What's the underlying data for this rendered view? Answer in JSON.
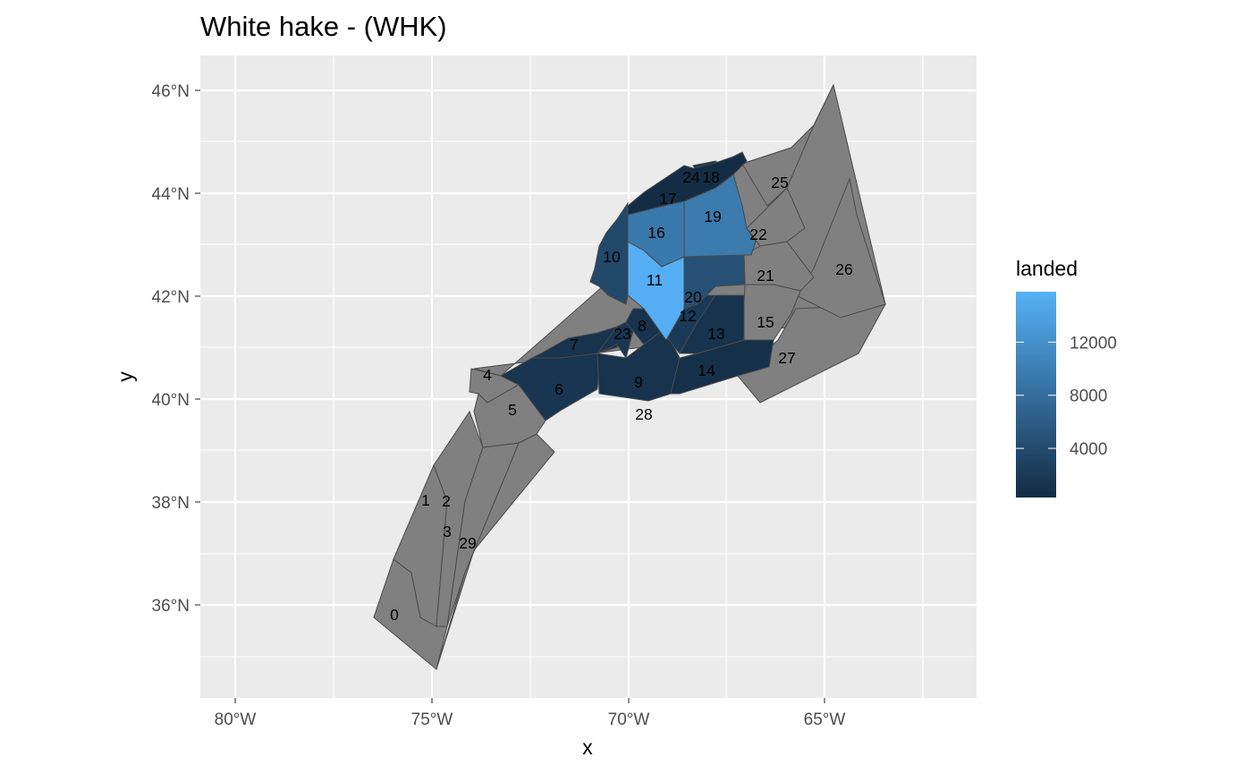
{
  "title": "White hake - (WHK)",
  "axes": {
    "x_label": "x",
    "y_label": "y",
    "x_ticks": [
      "80°W",
      "75°W",
      "70°W",
      "65°W"
    ],
    "y_ticks": [
      "46°N",
      "44°N",
      "42°N",
      "40°N",
      "38°N",
      "36°N"
    ]
  },
  "legend": {
    "title": "landed",
    "ticks": [
      "12000",
      "8000",
      "4000"
    ],
    "low_color": "#132B43",
    "high_color": "#56B1F7",
    "na_color": "#808080"
  },
  "areas": [
    {
      "label": "0",
      "landed": null
    },
    {
      "label": "1",
      "landed": null
    },
    {
      "label": "2",
      "landed": null
    },
    {
      "label": "3",
      "landed": null
    },
    {
      "label": "4",
      "landed": null
    },
    {
      "label": "5",
      "landed": null
    },
    {
      "label": "6",
      "landed": 1500
    },
    {
      "label": "7",
      "landed": 1200
    },
    {
      "label": "8",
      "landed": 1200
    },
    {
      "label": "9",
      "landed": 1200
    },
    {
      "label": "10",
      "landed": 3700
    },
    {
      "label": "11",
      "landed": 15500
    },
    {
      "label": "12",
      "landed": 2000
    },
    {
      "label": "13",
      "landed": 1200
    },
    {
      "label": "14",
      "landed": 900
    },
    {
      "label": "15",
      "landed": null
    },
    {
      "label": "16",
      "landed": 9300
    },
    {
      "label": "17",
      "landed": 500
    },
    {
      "label": "18",
      "landed": 800
    },
    {
      "label": "19",
      "landed": 9500
    },
    {
      "label": "20",
      "landed": 4600
    },
    {
      "label": "21",
      "landed": null
    },
    {
      "label": "22",
      "landed": null
    },
    {
      "label": "23",
      "landed": 1500
    },
    {
      "label": "24",
      "landed": null
    },
    {
      "label": "25",
      "landed": null
    },
    {
      "label": "26",
      "landed": null
    },
    {
      "label": "27",
      "landed": null
    },
    {
      "label": "28",
      "landed": null
    },
    {
      "label": "29",
      "landed": null
    }
  ]
}
